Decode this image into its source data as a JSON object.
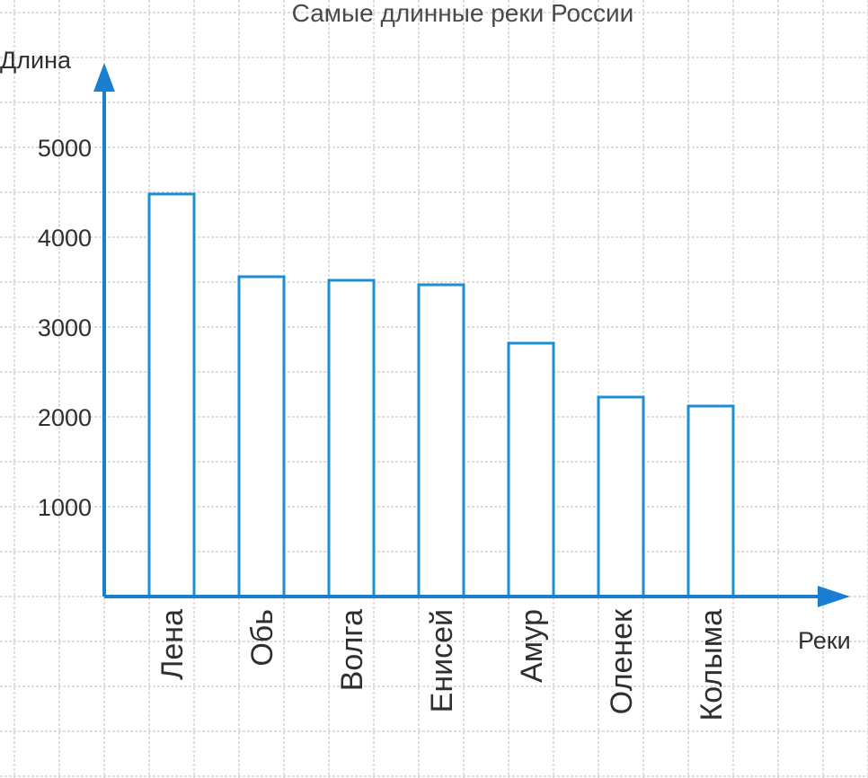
{
  "chart_data": {
    "type": "bar",
    "title": "Самые длинные реки России",
    "ylabel": "Длина",
    "xlabel": "Реки",
    "categories": [
      "Лена",
      "Обь",
      "Волга",
      "Енисей",
      "Амур",
      "Оленек",
      "Колыма"
    ],
    "values": [
      4480,
      3560,
      3520,
      3470,
      2820,
      2220,
      2120
    ],
    "yticks": [
      1000,
      2000,
      3000,
      4000,
      5000
    ],
    "ylim": [
      0,
      6000
    ],
    "grid": true,
    "colors": {
      "bar": "#1a8fd6",
      "axis": "#1a7fd0",
      "grid": "#bdbdbd"
    }
  }
}
